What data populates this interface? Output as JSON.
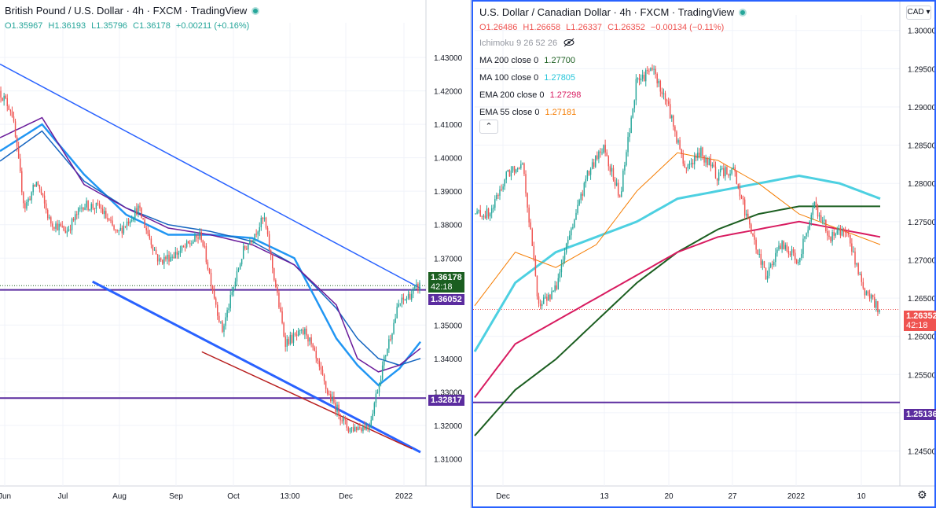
{
  "left": {
    "title": "British Pound / U.S. Dollar · 4h · FXCM · TradingView",
    "ohlc": {
      "o": "O1.35967",
      "h": "H1.36193",
      "l": "L1.35796",
      "c": "C1.36178",
      "chg": "+0.00211 (+0.16%)"
    },
    "price_tag": "1.36178",
    "price_tag_time": "42:18",
    "level_tags": [
      "1.36052",
      "1.32817"
    ],
    "colors": {
      "up": "#26a69a",
      "down": "#ef5350",
      "trend": "#2962ff",
      "level": "#5b2c9f",
      "ma_fast": "#2196f3",
      "ma_mid": "#1976d2",
      "ma_slow": "#6a1b9a",
      "red_line": "#b71c1c"
    }
  },
  "right": {
    "title": "U.S. Dollar / Canadian Dollar · 4h · FXCM · TradingView",
    "currency_button": "CAD",
    "ohlc": {
      "o": "O1.26486",
      "h": "H1.26658",
      "l": "L1.26337",
      "c": "C1.26352",
      "chg": "−0.00134 (−0.11%)"
    },
    "indicators": [
      {
        "label": "Ichimoku 9 26 52 26",
        "value": "",
        "color": "#9598a1"
      },
      {
        "label": "MA 200 close 0",
        "value": "1.27700",
        "color": "#1b5e20"
      },
      {
        "label": "MA 100 close 0",
        "value": "1.27805",
        "color": "#4dd0e1"
      },
      {
        "label": "EMA 200 close 0",
        "value": "1.27298",
        "color": "#d81b60"
      },
      {
        "label": "EMA 55 close 0",
        "value": "1.27181",
        "color": "#f57c00"
      }
    ],
    "collapse_icon": "chevron-up-icon",
    "eye_icon": "eye-crossed-icon",
    "gear_icon": "gear-icon",
    "price_tag": "1.26352",
    "price_tag_time": "42:18",
    "level_tags": [
      "1.25136"
    ]
  },
  "chart_data": [
    {
      "type": "candlestick",
      "title": "British Pound / U.S. Dollar · 4h · FXCM · TradingView",
      "x_ticks": [
        "Jun",
        "Jul",
        "Aug",
        "Sep",
        "Oct",
        "13:00",
        "Dec",
        "2022"
      ],
      "y_ticks": [
        "1.43000",
        "1.42000",
        "1.41000",
        "1.40000",
        "1.39000",
        "1.38000",
        "1.37000",
        "1.35000",
        "1.34000",
        "1.33000",
        "1.32000",
        "1.31000"
      ],
      "ylim": [
        1.308,
        1.438
      ],
      "price_series": {
        "name": "",
        "x": [
          0,
          0.03,
          0.06,
          0.09,
          0.12,
          0.16,
          0.2,
          0.24,
          0.28,
          0.33,
          0.38,
          0.43,
          0.48,
          0.53,
          0.58,
          0.63,
          0.68,
          0.73,
          0.78,
          0.83,
          0.88,
          0.92,
          0.95,
          1.0
        ],
        "values": [
          1.42,
          1.414,
          1.385,
          1.393,
          1.381,
          1.378,
          1.386,
          1.385,
          1.377,
          1.385,
          1.369,
          1.372,
          1.377,
          1.348,
          1.372,
          1.382,
          1.345,
          1.348,
          1.33,
          1.319,
          1.32,
          1.342,
          1.356,
          1.3618
        ]
      },
      "moving_averages": [
        {
          "name": "",
          "x": [
            0,
            0.1,
            0.2,
            0.3,
            0.4,
            0.5,
            0.6,
            0.7,
            0.8,
            0.85,
            0.9,
            0.95,
            1.0
          ],
          "values": [
            1.402,
            1.41,
            1.395,
            1.383,
            1.377,
            1.377,
            1.376,
            1.37,
            1.346,
            1.338,
            1.332,
            1.337,
            1.345
          ]
        },
        {
          "name": "",
          "x": [
            0,
            0.1,
            0.2,
            0.3,
            0.4,
            0.5,
            0.6,
            0.7,
            0.8,
            0.85,
            0.9,
            0.95,
            1.0
          ],
          "values": [
            1.399,
            1.408,
            1.393,
            1.385,
            1.38,
            1.378,
            1.375,
            1.368,
            1.355,
            1.346,
            1.34,
            1.338,
            1.34
          ]
        },
        {
          "name": "",
          "x": [
            0,
            0.1,
            0.2,
            0.3,
            0.4,
            0.5,
            0.6,
            0.7,
            0.8,
            0.85,
            0.9,
            0.95,
            1.0
          ],
          "values": [
            1.406,
            1.412,
            1.392,
            1.385,
            1.379,
            1.377,
            1.374,
            1.368,
            1.356,
            1.34,
            1.336,
            1.338,
            1.343
          ]
        }
      ],
      "trendlines": [
        {
          "x": [
            0.0,
            1.0
          ],
          "values": [
            1.428,
            1.361
          ]
        },
        {
          "x": [
            0.22,
            1.0
          ],
          "values": [
            1.363,
            1.312
          ]
        },
        {
          "x": [
            0.48,
            0.98
          ],
          "values": [
            1.342,
            1.313
          ]
        }
      ],
      "horizontal_levels": [
        1.36052,
        1.32817
      ],
      "last_price": 1.36178
    },
    {
      "type": "candlestick",
      "title": "U.S. Dollar / Canadian Dollar · 4h · FXCM · TradingView",
      "x_ticks": [
        "Dec",
        "13",
        "20",
        "27",
        "2022",
        "10"
      ],
      "y_ticks": [
        "1.30000",
        "1.29500",
        "1.29000",
        "1.28500",
        "1.28000",
        "1.27500",
        "1.27000",
        "1.26500",
        "1.26000",
        "1.25500",
        "1.25000",
        "1.24500"
      ],
      "ylim": [
        1.243,
        1.301
      ],
      "price_series": {
        "name": "",
        "x": [
          0,
          0.04,
          0.08,
          0.12,
          0.16,
          0.2,
          0.24,
          0.28,
          0.32,
          0.36,
          0.4,
          0.44,
          0.48,
          0.52,
          0.56,
          0.6,
          0.64,
          0.68,
          0.72,
          0.76,
          0.8,
          0.84,
          0.88,
          0.92,
          0.96,
          1.0
        ],
        "values": [
          1.276,
          1.276,
          1.281,
          1.283,
          1.264,
          1.266,
          1.274,
          1.281,
          1.285,
          1.278,
          1.293,
          1.295,
          1.29,
          1.282,
          1.284,
          1.281,
          1.282,
          1.274,
          1.268,
          1.272,
          1.27,
          1.277,
          1.273,
          1.274,
          1.266,
          1.2635
        ]
      },
      "moving_averages": [
        {
          "name": "",
          "x": [
            0,
            0.1,
            0.2,
            0.3,
            0.4,
            0.5,
            0.6,
            0.7,
            0.8,
            0.9,
            1.0
          ],
          "values": [
            1.247,
            1.253,
            1.257,
            1.262,
            1.267,
            1.271,
            1.274,
            1.276,
            1.277,
            1.277,
            1.277
          ]
        },
        {
          "name": "",
          "x": [
            0,
            0.1,
            0.2,
            0.3,
            0.4,
            0.5,
            0.6,
            0.7,
            0.8,
            0.9,
            1.0
          ],
          "values": [
            1.258,
            1.267,
            1.271,
            1.273,
            1.275,
            1.278,
            1.279,
            1.28,
            1.281,
            1.28,
            1.278
          ]
        },
        {
          "name": "",
          "x": [
            0,
            0.1,
            0.2,
            0.3,
            0.4,
            0.5,
            0.6,
            0.7,
            0.8,
            0.9,
            1.0
          ],
          "values": [
            1.252,
            1.259,
            1.262,
            1.265,
            1.268,
            1.271,
            1.273,
            1.274,
            1.275,
            1.274,
            1.273
          ]
        },
        {
          "name": "",
          "x": [
            0,
            0.1,
            0.2,
            0.3,
            0.4,
            0.5,
            0.6,
            0.7,
            0.8,
            0.9,
            1.0
          ],
          "values": [
            1.264,
            1.271,
            1.269,
            1.272,
            1.279,
            1.284,
            1.283,
            1.28,
            1.276,
            1.274,
            1.272
          ]
        }
      ],
      "horizontal_levels": [
        1.25136
      ],
      "last_price": 1.26352
    }
  ]
}
